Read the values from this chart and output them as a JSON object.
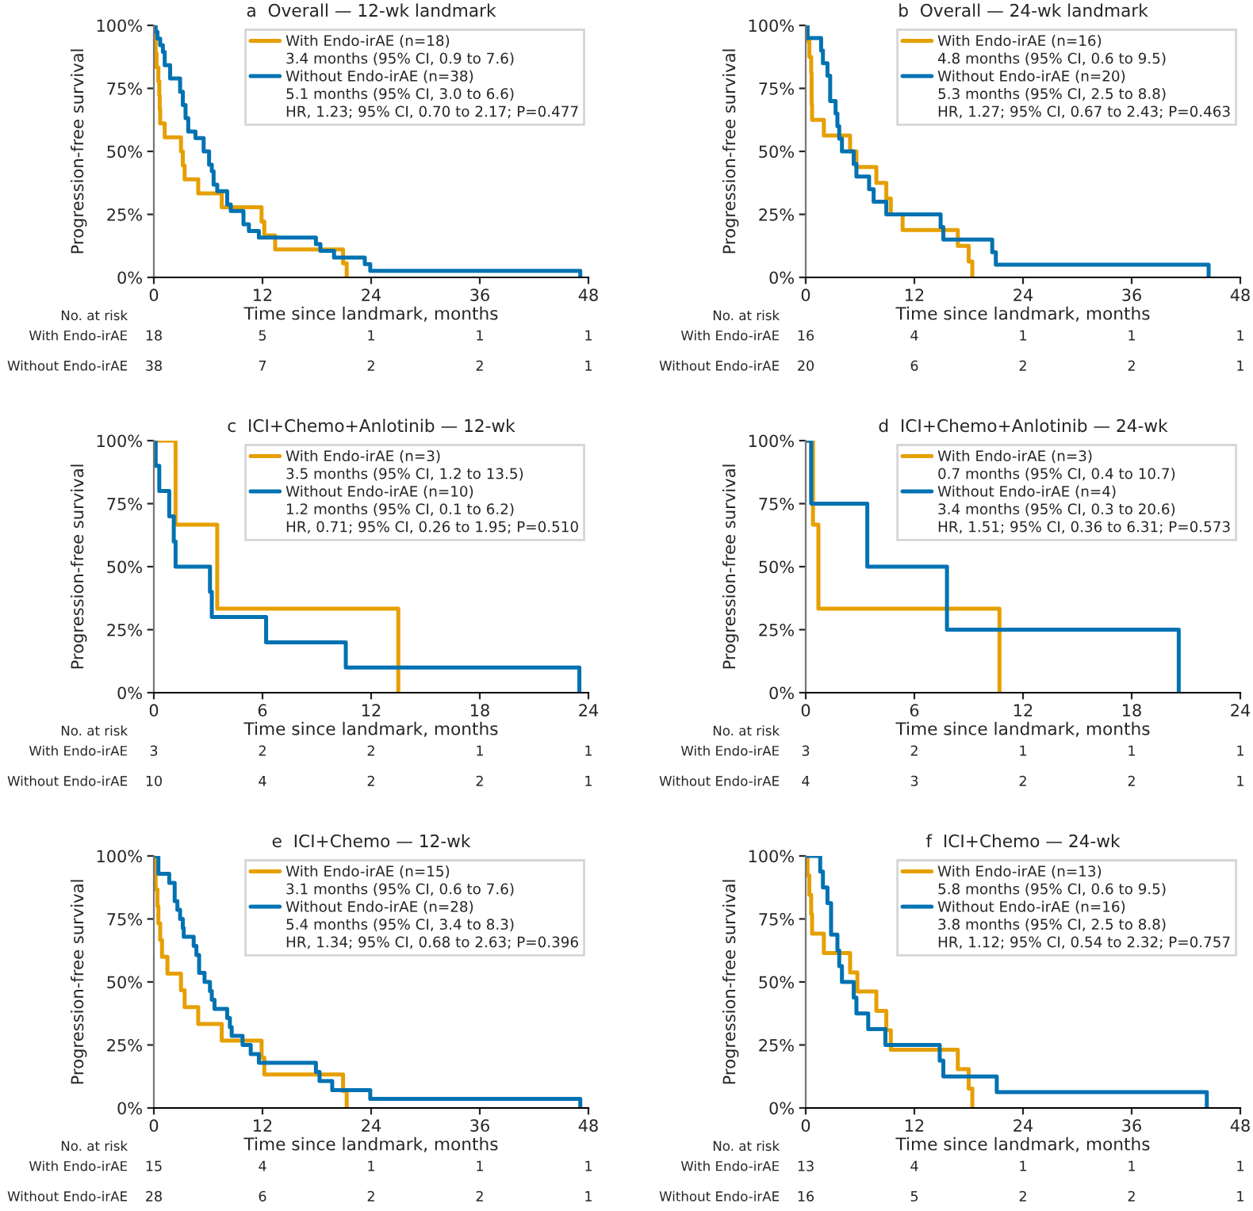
{
  "chart_data": [
    {
      "type": "step",
      "title": "a  Overall — 12-wk landmark",
      "xlabel": "Time since landmark, months",
      "ylabel": "Progression-free survival",
      "xlim": [
        0,
        48
      ],
      "xticks": [
        0,
        12,
        24,
        36,
        48
      ],
      "ylim": [
        0,
        100
      ],
      "yticks": [
        {
          "value": 0,
          "label": "0%"
        },
        {
          "value": 25,
          "label": "25%"
        },
        {
          "value": 50,
          "label": "50%"
        },
        {
          "value": 75,
          "label": "75%"
        },
        {
          "value": 100,
          "label": "100%"
        }
      ],
      "legend": "top right",
      "grid": false,
      "series": [
        {
          "name": "With Endo-irAE (n=18)",
          "color": "#e69f00",
          "x": [
            0,
            0.1,
            0.2,
            0.3,
            0.5,
            0.6,
            0.65,
            0.7,
            1.2,
            3.0,
            3.2,
            3.4,
            4.9,
            7.5,
            11.9,
            12.2,
            13.4,
            20.9,
            21.3
          ],
          "values": [
            100,
            94.4,
            88.9,
            83.3,
            77.8,
            72.2,
            66.7,
            61.1,
            55.6,
            50,
            44.4,
            38.9,
            33.3,
            27.8,
            22.2,
            16.7,
            11.1,
            5.6,
            0
          ]
        },
        {
          "name": "Without Endo-irAE (n=38)",
          "color": "#0072b2",
          "x": [
            0,
            0.2,
            0.4,
            0.7,
            1.0,
            1.2,
            1.8,
            2.9,
            3.2,
            3.5,
            3.8,
            4.6,
            5.5,
            6.1,
            6.4,
            6.6,
            7.0,
            8.1,
            8.5,
            9.9,
            10.5,
            11.6,
            17.9,
            18.4,
            19.9,
            23.3,
            23.9,
            47.1
          ],
          "values": [
            100,
            97.4,
            94.7,
            92.1,
            89.5,
            84.2,
            78.9,
            73.7,
            68.4,
            63.2,
            57.9,
            55.3,
            50,
            44.7,
            42.1,
            36.8,
            34.2,
            28.9,
            26.3,
            21.1,
            18.4,
            15.8,
            13.2,
            10.5,
            7.9,
            5.3,
            2.6,
            0
          ]
        }
      ],
      "annotations": [
        "3.4 months (95% CI, 0.9 to 7.6)",
        "5.1 months (95% CI, 3.0 to 6.6)",
        "HR, 1.23; 95% CI, 0.70 to 2.17; P=0.477",
        "No. at risk",
        "With Endo-irAE",
        "18",
        "5",
        "1",
        "1",
        "1",
        "Without Endo-irAE",
        "38",
        "7",
        "2",
        "2",
        "1"
      ]
    },
    {
      "type": "step",
      "title": "b  Overall — 24-wk landmark",
      "xlabel": "Time since landmark, months",
      "ylabel": "Progression-free survival",
      "xlim": [
        0,
        48
      ],
      "xticks": [
        0,
        12,
        24,
        36,
        48
      ],
      "ylim": [
        0,
        100
      ],
      "yticks": [
        {
          "value": 0,
          "label": "0%"
        },
        {
          "value": 25,
          "label": "25%"
        },
        {
          "value": 50,
          "label": "50%"
        },
        {
          "value": 75,
          "label": "75%"
        },
        {
          "value": 100,
          "label": "100%"
        }
      ],
      "legend": "top right",
      "grid": false,
      "series": [
        {
          "name": "With Endo-irAE (n=16)",
          "color": "#e69f00",
          "x": [
            0,
            0.2,
            0.4,
            0.6,
            0.65,
            0.7,
            2.0,
            4.9,
            5.6,
            7.8,
            8.9,
            9.4,
            10.7,
            16.8,
            18.0,
            18.4
          ],
          "values": [
            100,
            93.8,
            87.5,
            81.3,
            68.8,
            62.5,
            56.3,
            50,
            43.8,
            37.5,
            31.3,
            25,
            18.8,
            12.5,
            6.3,
            0
          ]
        },
        {
          "name": "Without Endo-irAE (n=20)",
          "color": "#0072b2",
          "x": [
            0,
            0.2,
            1.7,
            1.9,
            2.4,
            2.7,
            3.3,
            3.5,
            3.7,
            4.0,
            5.3,
            5.6,
            7.0,
            7.5,
            8.9,
            14.9,
            15.2,
            20.6,
            21.0,
            44.5
          ],
          "values": [
            100,
            95,
            90,
            85,
            80,
            70,
            65,
            60,
            55,
            50,
            45,
            40,
            35,
            30,
            25,
            20,
            15,
            10,
            5,
            0
          ]
        }
      ],
      "annotations": [
        "4.8 months (95% CI, 0.6 to 9.5)",
        "5.3 months (95% CI, 2.5 to 8.8)",
        "HR, 1.27; 95% CI, 0.67 to 2.43; P=0.463",
        "No. at risk",
        "With Endo-irAE",
        "16",
        "4",
        "1",
        "1",
        "1",
        "Without Endo-irAE",
        "20",
        "6",
        "2",
        "2",
        "1"
      ]
    },
    {
      "type": "step",
      "title": "c  ICI+Chemo+Anlotinib — 12-wk",
      "xlabel": "Time since landmark, months",
      "ylabel": "Progression-free survival",
      "xlim": [
        0,
        24
      ],
      "xticks": [
        0,
        6,
        12,
        18,
        24
      ],
      "ylim": [
        0,
        100
      ],
      "yticks": [
        {
          "value": 0,
          "label": "0%"
        },
        {
          "value": 25,
          "label": "25%"
        },
        {
          "value": 50,
          "label": "50%"
        },
        {
          "value": 75,
          "label": "75%"
        },
        {
          "value": 100,
          "label": "100%"
        }
      ],
      "legend": "top right",
      "grid": false,
      "series": [
        {
          "name": "With Endo-irAE (n=3)",
          "color": "#e69f00",
          "x": [
            0,
            1.2,
            3.5,
            13.5
          ],
          "values": [
            100,
            66.7,
            33.3,
            0
          ]
        },
        {
          "name": "Without Endo-irAE (n=10)",
          "color": "#0072b2",
          "x": [
            0,
            0.1,
            0.3,
            0.85,
            1.1,
            1.2,
            3.1,
            3.2,
            6.2,
            10.6,
            23.5
          ],
          "values": [
            100,
            90,
            80,
            70,
            60,
            50,
            40,
            30,
            20,
            10,
            0
          ]
        }
      ],
      "annotations": [
        "3.5 months (95% CI, 1.2 to 13.5)",
        "1.2 months (95% CI, 0.1 to 6.2)",
        "HR, 0.71; 95% CI, 0.26 to 1.95; P=0.510",
        "No. at risk",
        "With Endo-irAE",
        "3",
        "2",
        "2",
        "1",
        "1",
        "Without Endo-irAE",
        "10",
        "4",
        "2",
        "2",
        "1"
      ]
    },
    {
      "type": "step",
      "title": "d  ICI+Chemo+Anlotinib — 24-wk",
      "xlabel": "Time since landmark, months",
      "ylabel": "Progression-free survival",
      "xlim": [
        0,
        24
      ],
      "xticks": [
        0,
        6,
        12,
        18,
        24
      ],
      "ylim": [
        0,
        100
      ],
      "yticks": [
        {
          "value": 0,
          "label": "0%"
        },
        {
          "value": 25,
          "label": "25%"
        },
        {
          "value": 50,
          "label": "50%"
        },
        {
          "value": 75,
          "label": "75%"
        },
        {
          "value": 100,
          "label": "100%"
        }
      ],
      "legend": "top right",
      "grid": false,
      "series": [
        {
          "name": "With Endo-irAE (n=3)",
          "color": "#e69f00",
          "x": [
            0,
            0.4,
            0.7,
            10.7
          ],
          "values": [
            100,
            66.7,
            33.3,
            0
          ]
        },
        {
          "name": "Without Endo-irAE (n=4)",
          "color": "#0072b2",
          "x": [
            0,
            0.3,
            3.4,
            7.8,
            20.6
          ],
          "values": [
            100,
            75,
            50,
            25,
            0
          ]
        }
      ],
      "annotations": [
        "0.7 months (95% CI, 0.4 to 10.7)",
        "3.4 months (95% CI, 0.3 to 20.6)",
        "HR, 1.51; 95% CI, 0.36 to 6.31; P=0.573",
        "No. at risk",
        "With Endo-irAE",
        "3",
        "2",
        "1",
        "1",
        "1",
        "Without Endo-irAE",
        "4",
        "3",
        "2",
        "2",
        "1"
      ]
    },
    {
      "type": "step",
      "title": "e  ICI+Chemo — 12-wk",
      "xlabel": "Time since landmark, months",
      "ylabel": "Progression-free survival",
      "xlim": [
        0,
        48
      ],
      "xticks": [
        0,
        12,
        24,
        36,
        48
      ],
      "ylim": [
        0,
        100
      ],
      "yticks": [
        {
          "value": 0,
          "label": "0%"
        },
        {
          "value": 25,
          "label": "25%"
        },
        {
          "value": 50,
          "label": "50%"
        },
        {
          "value": 75,
          "label": "75%"
        },
        {
          "value": 100,
          "label": "100%"
        }
      ],
      "legend": "top right",
      "grid": false,
      "series": [
        {
          "name": "With Endo-irAE (n=15)",
          "color": "#e69f00",
          "x": [
            0,
            0.1,
            0.2,
            0.4,
            0.5,
            0.7,
            0.9,
            1.5,
            3.0,
            3.4,
            4.9,
            7.5,
            11.9,
            12.2,
            20.9,
            21.3
          ],
          "values": [
            100,
            93.3,
            86.7,
            80,
            73.3,
            66.7,
            60,
            53.3,
            46.7,
            40,
            33.3,
            26.7,
            20,
            13.3,
            6.7,
            0
          ]
        },
        {
          "name": "Without Endo-irAE (n=28)",
          "color": "#0072b2",
          "x": [
            0,
            0.5,
            1.7,
            2.3,
            2.6,
            2.9,
            3.2,
            3.3,
            4.4,
            4.7,
            5.0,
            5.6,
            6.2,
            6.4,
            6.7,
            8.1,
            8.4,
            8.6,
            9.8,
            10.7,
            11.6,
            17.9,
            18.3,
            19.7,
            23.9,
            47.1
          ],
          "values": [
            100,
            92.9,
            89.3,
            82.1,
            78.6,
            75,
            71.4,
            67.9,
            64.3,
            60.7,
            53.6,
            50,
            46.4,
            42.9,
            39.3,
            35.7,
            32.1,
            28.6,
            25,
            21.4,
            17.9,
            14.3,
            10.7,
            7.1,
            3.6,
            0
          ]
        }
      ],
      "annotations": [
        "3.1 months (95% CI, 0.6 to 7.6)",
        "5.4 months (95% CI, 3.4 to 8.3)",
        "HR, 1.34; 95% CI, 0.68 to 2.63; P=0.396",
        "No. at risk",
        "With Endo-irAE",
        "15",
        "4",
        "1",
        "1",
        "1",
        "Without Endo-irAE",
        "28",
        "6",
        "2",
        "2",
        "1"
      ]
    },
    {
      "type": "step",
      "title": "f  ICI+Chemo — 24-wk",
      "xlabel": "Time since landmark, months",
      "ylabel": "Progression-free survival",
      "xlim": [
        0,
        48
      ],
      "xticks": [
        0,
        12,
        24,
        36,
        48
      ],
      "ylim": [
        0,
        100
      ],
      "yticks": [
        {
          "value": 0,
          "label": "0%"
        },
        {
          "value": 25,
          "label": "25%"
        },
        {
          "value": 50,
          "label": "50%"
        },
        {
          "value": 75,
          "label": "75%"
        },
        {
          "value": 100,
          "label": "100%"
        }
      ],
      "legend": "top right",
      "grid": false,
      "series": [
        {
          "name": "With Endo-irAE (n=13)",
          "color": "#e69f00",
          "x": [
            0,
            0.2,
            0.4,
            0.6,
            0.7,
            2.0,
            4.9,
            5.7,
            7.8,
            8.9,
            9.4,
            16.8,
            18.0,
            18.4
          ],
          "values": [
            100,
            92.3,
            84.6,
            76.9,
            69.2,
            61.5,
            53.8,
            46.2,
            38.5,
            30.8,
            23.1,
            15.4,
            7.7,
            0
          ]
        },
        {
          "name": "Without Endo-irAE (n=16)",
          "color": "#0072b2",
          "x": [
            0,
            1.6,
            1.9,
            2.4,
            2.8,
            3.5,
            3.7,
            4.0,
            5.3,
            5.6,
            6.9,
            8.8,
            14.8,
            15.2,
            21.1,
            44.3
          ],
          "values": [
            100,
            93.8,
            87.5,
            81.3,
            68.8,
            62.5,
            56.3,
            50,
            43.8,
            37.5,
            31.3,
            25,
            18.8,
            12.5,
            6.3,
            0
          ]
        }
      ],
      "annotations": [
        "5.8 months (95% CI, 0.6 to 9.5)",
        "3.8 months (95% CI, 2.5 to 8.8)",
        "HR, 1.12; 95% CI, 0.54 to 2.32; P=0.757",
        "No. at risk",
        "With Endo-irAE",
        "13",
        "4",
        "1",
        "1",
        "1",
        "Without Endo-irAE",
        "16",
        "5",
        "2",
        "2",
        "1"
      ]
    }
  ]
}
